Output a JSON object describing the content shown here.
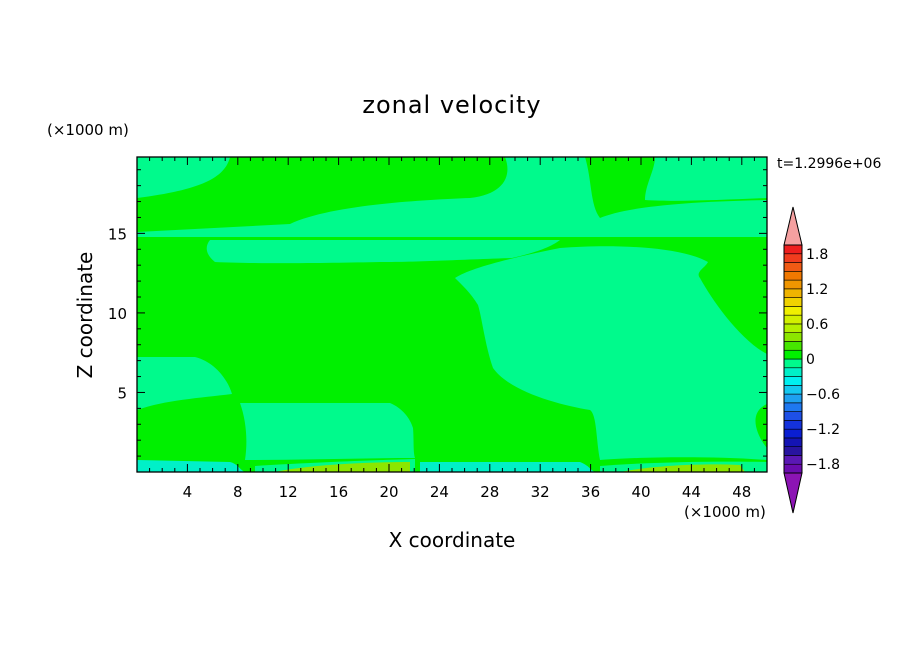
{
  "chart_data": {
    "type": "heatmap",
    "title": "zonal velocity",
    "xlabel": "X coordinate",
    "ylabel": "Z coordinate",
    "x_unit": "(×1000 m)",
    "y_unit": "(×1000 m)",
    "time_label": "t=1.2996e+06",
    "xlim": [
      0,
      50
    ],
    "ylim": [
      0,
      19.8
    ],
    "x_ticks": [
      4,
      8,
      12,
      16,
      20,
      24,
      28,
      32,
      36,
      40,
      44,
      48
    ],
    "y_ticks": [
      5,
      10,
      15
    ],
    "background_level": "0 to 0.3",
    "colorbar": {
      "levels": [
        -1.95,
        -1.8,
        -1.65,
        -1.5,
        -1.35,
        -1.2,
        -1.05,
        -0.9,
        -0.75,
        -0.6,
        -0.45,
        -0.3,
        -0.15,
        0,
        0.15,
        0.3,
        0.45,
        0.6,
        0.75,
        0.9,
        1.05,
        1.2,
        1.35,
        1.5,
        1.65,
        1.8,
        1.95
      ],
      "colors": [
        "#6a0cae",
        "#5a18b4",
        "#2814a0",
        "#1414b4",
        "#0a1ed2",
        "#1432dc",
        "#1e50e6",
        "#1e78f0",
        "#1ea0f0",
        "#14c8f0",
        "#00f0f0",
        "#00f0c8",
        "#00fa8c",
        "#00f000",
        "#46e600",
        "#8ce600",
        "#b4f000",
        "#d2f000",
        "#f0f000",
        "#f0d200",
        "#f0b400",
        "#f09600",
        "#f07800",
        "#f05a14",
        "#f03c1e",
        "#ee1e1e"
      ],
      "tick_labels": [
        "1.8",
        "1.2",
        "0.6",
        "0",
        "−0.6",
        "−1.2",
        "−1.8"
      ],
      "over_color": "#f5a0a0",
      "under_color": "#8c14b4"
    },
    "regions": [
      {
        "level": "0 to 0.3",
        "color": "#00f000",
        "description": "background"
      },
      {
        "level": "-0.15 to 0",
        "color": "#00fa8c"
      },
      {
        "level": "-0.3 to -0.15",
        "color": "#00f0c8"
      },
      {
        "level": "0.3 to 0.45",
        "color": "#8ce600"
      }
    ]
  }
}
